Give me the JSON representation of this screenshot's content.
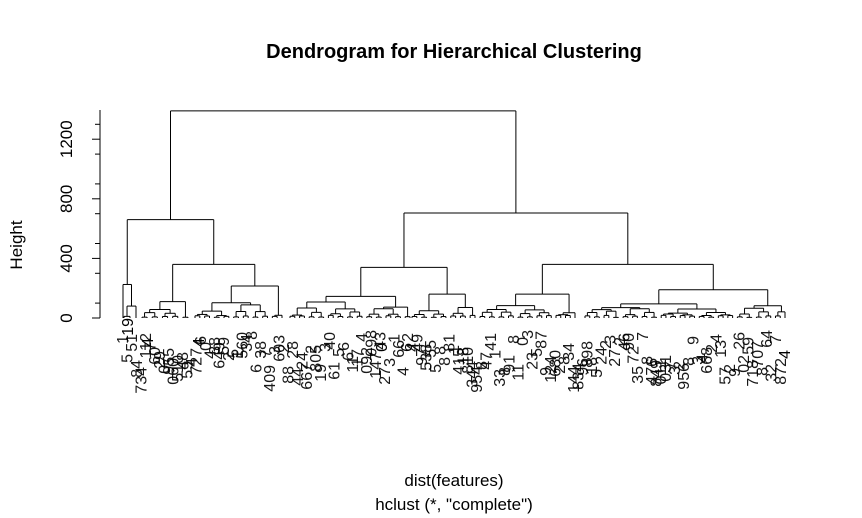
{
  "chart_data": {
    "type": "dendrogram",
    "title": "Dendrogram for Hierarchical Clustering",
    "ylabel": "Height",
    "xlabel": "dist(features)",
    "sublabel": "hclust (*, \"complete\")",
    "yticks": [
      0,
      400,
      800,
      1200
    ],
    "ylim": [
      0,
      1400
    ],
    "root_height": 1390,
    "merges": [
      {
        "height": 1390,
        "children": [
          "left-cluster",
          "right-cluster"
        ]
      },
      {
        "height": 660,
        "cluster": "left-cluster",
        "children": [
          "left-a",
          "left-b"
        ]
      },
      {
        "height": 705,
        "cluster": "right-cluster",
        "children": [
          "right-a",
          "right-b"
        ]
      },
      {
        "height": 225,
        "cluster": "left-a"
      },
      {
        "height": 360,
        "cluster": "left-b"
      },
      {
        "height": 340,
        "cluster": "right-a"
      },
      {
        "height": 360,
        "cluster": "right-b"
      }
    ],
    "leaf_labels": [
      "19",
      "4",
      "4",
      "0",
      "6",
      "4"
    ]
  }
}
